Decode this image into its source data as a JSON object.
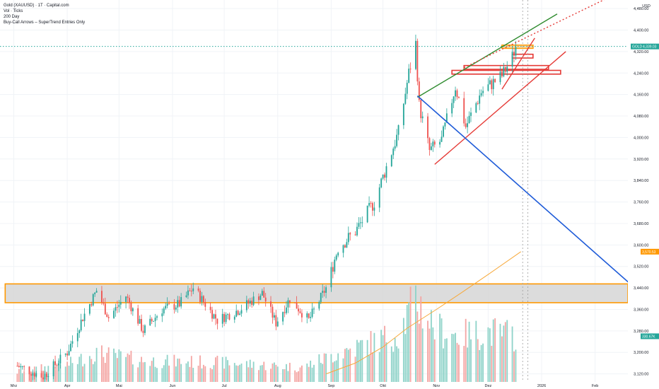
{
  "legend": {
    "title": "Gold (XAUUSD) · 1T · Capital.com",
    "line2": "Vol · Ticks",
    "line3": "200 Day",
    "line4": "Buy-Call Arrows – SuperTrend Entries Only"
  },
  "colors": {
    "up": "#26a69a",
    "down": "#ef5350",
    "vol_up": "#8fd3c9",
    "vol_down": "#f4a6a4",
    "zone_fill": "#d6d6d6",
    "zone_border": "#ff9800",
    "ma": "#f7a93b",
    "green_line": "#2e8b2e",
    "red_line": "#e53935",
    "blue_line": "#1e5bd8",
    "price_tag": "#26a69a",
    "ma_tag": "#ff9800",
    "volume_tag": "#26a69a"
  },
  "chart_data": {
    "type": "candlestick",
    "currency": "USD",
    "x_axis": {
      "labels": [
        "Mrz",
        "Apr",
        "Mai",
        "Jun",
        "Jul",
        "Aug",
        "Sep",
        "Okt",
        "Nov",
        "Dez",
        "2026",
        "Feb"
      ],
      "label_dates": [
        "2025-03-01",
        "2025-04-01",
        "2025-05-01",
        "2025-06-01",
        "2025-07-01",
        "2025-08-01",
        "2025-09-01",
        "2025-10-01",
        "2025-11-01",
        "2025-12-01",
        "2026-01-01",
        "2026-02-01"
      ],
      "range": [
        "2025-02-21",
        "2026-02-20"
      ]
    },
    "y_axis": {
      "labels": [
        "4,480.00",
        "4,400.00",
        "4,320.00",
        "4,240.00",
        "4,160.00",
        "4,080.00",
        "4,000.00",
        "3,920.00",
        "3,840.00",
        "3,760.00",
        "3,680.00",
        "3,600.00",
        "3,520.00",
        "3,440.00",
        "3,360.00",
        "3,280.00",
        "3,200.00",
        "3,120.00"
      ],
      "ticks": [
        4480,
        4400,
        4320,
        4240,
        4160,
        4080,
        4000,
        3920,
        3840,
        3760,
        3680,
        3600,
        3520,
        3440,
        3360,
        3280,
        3200,
        3120
      ],
      "range": [
        3090,
        4512
      ]
    },
    "last_price": 4339.03,
    "last_price_label": "4,339.03",
    "symbol_label": "GOLD",
    "ma200_label": "3,570.53",
    "volume_label": "330.67K",
    "anchors": [
      [
        "2025-03-03",
        3150
      ],
      [
        "2025-03-18",
        3110
      ],
      [
        "2025-04-01",
        3200
      ],
      [
        "2025-04-10",
        3330
      ],
      [
        "2025-04-18",
        3430
      ],
      [
        "2025-04-25",
        3330
      ],
      [
        "2025-05-05",
        3410
      ],
      [
        "2025-05-15",
        3280
      ],
      [
        "2025-05-26",
        3360
      ],
      [
        "2025-06-05",
        3380
      ],
      [
        "2025-06-13",
        3440
      ],
      [
        "2025-06-27",
        3320
      ],
      [
        "2025-07-10",
        3360
      ],
      [
        "2025-07-23",
        3420
      ],
      [
        "2025-07-31",
        3310
      ],
      [
        "2025-08-08",
        3400
      ],
      [
        "2025-08-19",
        3320
      ],
      [
        "2025-08-29",
        3440
      ],
      [
        "2025-09-05",
        3590
      ],
      [
        "2025-09-15",
        3650
      ],
      [
        "2025-09-26",
        3760
      ],
      [
        "2025-10-03",
        3890
      ],
      [
        "2025-10-10",
        4020
      ],
      [
        "2025-10-16",
        4240
      ],
      [
        "2025-10-20",
        4350
      ],
      [
        "2025-10-22",
        4120
      ],
      [
        "2025-10-28",
        3950
      ],
      [
        "2025-11-04",
        3990
      ],
      [
        "2025-11-12",
        4190
      ],
      [
        "2025-11-18",
        4040
      ],
      [
        "2025-11-27",
        4170
      ],
      [
        "2025-12-03",
        4200
      ],
      [
        "2025-12-09",
        4230
      ],
      [
        "2025-12-15",
        4300
      ],
      [
        "2025-12-17",
        4339
      ]
    ],
    "volume_anchors": [
      [
        "2025-03-01",
        0.1
      ],
      [
        "2025-04-01",
        0.18
      ],
      [
        "2025-04-18",
        0.3
      ],
      [
        "2025-05-15",
        0.22
      ],
      [
        "2025-07-01",
        0.2
      ],
      [
        "2025-08-15",
        0.15
      ],
      [
        "2025-09-05",
        0.3
      ],
      [
        "2025-10-10",
        0.5
      ],
      [
        "2025-10-20",
        0.85
      ],
      [
        "2025-11-01",
        0.55
      ],
      [
        "2025-11-15",
        0.48
      ],
      [
        "2025-12-01",
        0.52
      ],
      [
        "2025-12-17",
        0.48
      ]
    ],
    "ma200": [
      [
        "2025-08-29",
        3120
      ],
      [
        "2025-09-15",
        3160
      ],
      [
        "2025-10-01",
        3220
      ],
      [
        "2025-10-15",
        3290
      ],
      [
        "2025-11-01",
        3360
      ],
      [
        "2025-11-15",
        3420
      ],
      [
        "2025-12-01",
        3490
      ],
      [
        "2025-12-20",
        3575
      ]
    ],
    "zones": [
      {
        "name": "support-zone",
        "x": [
          "2025-02-24",
          "2026-02-20"
        ],
        "y": [
          3385,
          3455
        ],
        "color": "#ff9800"
      },
      {
        "name": "resistance-box-1",
        "x": [
          "2025-11-17",
          "2026-01-05"
        ],
        "y": [
          4268,
          4254
        ],
        "color": "#e53935"
      },
      {
        "name": "resistance-box-2",
        "x": [
          "2025-11-10",
          "2026-01-12"
        ],
        "y": [
          4250,
          4236
        ],
        "color": "#e53935"
      },
      {
        "name": "resistance-box-3",
        "x": [
          "2025-12-15",
          "2025-12-27"
        ],
        "y": [
          4310,
          4296
        ],
        "color": "#e53935"
      },
      {
        "name": "target-box",
        "x": [
          "2025-12-09",
          "2025-12-27"
        ],
        "y": [
          4344,
          4332
        ],
        "color": "#ff9800"
      }
    ],
    "lines": [
      {
        "name": "green-trendline",
        "from": [
          "2025-10-21",
          4150
        ],
        "to": [
          "2026-01-10",
          4460
        ],
        "color": "#2e8b2e",
        "dash": false
      },
      {
        "name": "red-dotted-extension",
        "from": [
          "2025-11-17",
          4260
        ],
        "to": [
          "2026-02-10",
          4525
        ],
        "color": "#e53935",
        "dash": true
      },
      {
        "name": "red-upper-channel",
        "from": [
          "2025-12-09",
          4180
        ],
        "to": [
          "2025-12-28",
          4370
        ],
        "color": "#e53935",
        "dash": false
      },
      {
        "name": "red-lower-trendline",
        "from": [
          "2025-10-31",
          3900
        ],
        "to": [
          "2026-01-15",
          4320
        ],
        "color": "#e53935",
        "dash": false
      },
      {
        "name": "blue-trendline",
        "from": [
          "2025-10-21",
          4155
        ],
        "to": [
          "2026-02-24",
          3440
        ],
        "color": "#1e5bd8",
        "dash": false
      }
    ],
    "vlines": [
      "2025-12-21",
      "2025-12-24"
    ]
  }
}
